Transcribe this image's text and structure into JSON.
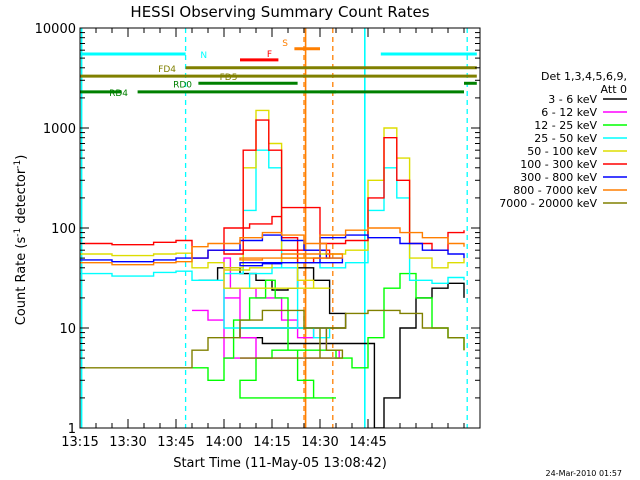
{
  "chart_data": {
    "type": "line",
    "title": "HESSI Observing Summary Count Rates",
    "xlabel": "Start Time (11-May-05 13:08:42)",
    "ylabel_main": "Count Rate (s",
    "ylabel_sup1": "-1",
    "ylabel_mid": " detector",
    "ylabel_sup2": "-1",
    "ylabel_end": ")",
    "yscale": "log",
    "ylim": [
      1,
      10000
    ],
    "xlim_minutes": [
      13.15,
      14.8
    ],
    "x_ticks": [
      "13:15",
      "13:30",
      "13:45",
      "14:00",
      "14:15",
      "14:30",
      "14:45"
    ],
    "y_ticks": [
      "1",
      "10",
      "100",
      "1000",
      "10000"
    ],
    "legend_header": [
      "Det 1,3,4,5,6,9,",
      "Att 0"
    ],
    "series": [
      {
        "name": "3 - 6 keV",
        "color": "#000000",
        "points": [
          [
            13.52,
            30
          ],
          [
            13.58,
            40
          ],
          [
            13.65,
            35
          ],
          [
            13.7,
            30
          ],
          [
            13.75,
            24
          ],
          [
            13.8,
            25
          ],
          [
            13.83,
            40
          ],
          [
            13.88,
            30
          ],
          [
            13.93,
            14
          ],
          [
            13.98,
            10
          ],
          [
            14.05,
            8
          ],
          [
            14.12,
            7
          ],
          [
            14.18,
            7
          ],
          [
            14.47,
            1
          ],
          [
            14.5,
            2
          ],
          [
            14.55,
            10
          ],
          [
            14.6,
            20
          ],
          [
            14.65,
            25
          ],
          [
            14.7,
            28
          ],
          [
            14.75,
            20
          ]
        ]
      },
      {
        "name": "6 - 12 keV",
        "color": "#ff00ff",
        "points": [
          [
            13.5,
            15
          ],
          [
            13.55,
            12
          ],
          [
            13.6,
            20
          ],
          [
            13.65,
            25
          ],
          [
            13.7,
            20
          ],
          [
            13.78,
            12
          ],
          [
            13.83,
            8
          ],
          [
            13.88,
            10
          ],
          [
            13.92,
            6
          ],
          [
            13.96,
            5
          ],
          [
            14.0,
            50
          ],
          [
            14.02,
            25
          ],
          [
            14.05,
            8
          ],
          [
            14.1,
            5
          ],
          [
            14.15,
            5
          ],
          [
            14.18,
            5
          ]
        ]
      },
      {
        "name": "12 - 25 keV",
        "color": "#00ff00",
        "points": [
          [
            13.5,
            4
          ],
          [
            13.55,
            3
          ],
          [
            13.6,
            5
          ],
          [
            13.63,
            12
          ],
          [
            13.68,
            20
          ],
          [
            13.73,
            30
          ],
          [
            13.76,
            20
          ],
          [
            13.8,
            6
          ],
          [
            13.83,
            3
          ],
          [
            13.88,
            2
          ],
          [
            13.95,
            2
          ],
          [
            14.05,
            3
          ],
          [
            14.1,
            5
          ],
          [
            14.15,
            6
          ],
          [
            14.18,
            6
          ],
          [
            14.35,
            5
          ],
          [
            14.4,
            4
          ],
          [
            14.45,
            8
          ],
          [
            14.5,
            25
          ],
          [
            14.55,
            35
          ],
          [
            14.6,
            20
          ],
          [
            14.65,
            10
          ],
          [
            14.7,
            8
          ],
          [
            14.75,
            6
          ]
        ]
      },
      {
        "name": "25 - 50 keV",
        "color": "#00ffff",
        "points": [
          [
            13.15,
            35
          ],
          [
            13.25,
            33
          ],
          [
            13.38,
            36
          ],
          [
            13.45,
            37
          ],
          [
            13.5,
            30
          ],
          [
            13.55,
            30
          ],
          [
            13.6,
            35
          ],
          [
            13.66,
            150
          ],
          [
            13.7,
            600
          ],
          [
            13.74,
            400
          ],
          [
            13.78,
            40
          ],
          [
            13.83,
            10
          ],
          [
            13.88,
            8
          ],
          [
            13.93,
            10
          ],
          [
            14.0,
            25
          ],
          [
            14.08,
            35
          ],
          [
            14.15,
            40
          ],
          [
            14.18,
            45
          ],
          [
            14.3,
            40
          ],
          [
            14.38,
            45
          ],
          [
            14.45,
            150
          ],
          [
            14.5,
            400
          ],
          [
            14.54,
            200
          ],
          [
            14.58,
            30
          ],
          [
            14.65,
            28
          ],
          [
            14.7,
            32
          ],
          [
            14.75,
            30
          ]
        ]
      },
      {
        "name": "50 - 100 keV",
        "color": "#dddd00",
        "points": [
          [
            13.15,
            55
          ],
          [
            13.25,
            53
          ],
          [
            13.38,
            55
          ],
          [
            13.45,
            56
          ],
          [
            13.5,
            40
          ],
          [
            13.55,
            45
          ],
          [
            13.6,
            40
          ],
          [
            13.66,
            400
          ],
          [
            13.7,
            1500
          ],
          [
            13.74,
            700
          ],
          [
            13.78,
            60
          ],
          [
            13.83,
            30
          ],
          [
            13.88,
            25
          ],
          [
            13.93,
            25
          ],
          [
            14.0,
            38
          ],
          [
            14.08,
            40
          ],
          [
            14.15,
            45
          ],
          [
            14.18,
            50
          ],
          [
            14.3,
            55
          ],
          [
            14.38,
            60
          ],
          [
            14.45,
            300
          ],
          [
            14.5,
            1000
          ],
          [
            14.54,
            500
          ],
          [
            14.58,
            50
          ],
          [
            14.65,
            40
          ],
          [
            14.7,
            45
          ],
          [
            14.75,
            50
          ]
        ]
      },
      {
        "name": "100 - 300 keV",
        "color": "#ff0000",
        "points": [
          [
            13.15,
            70
          ],
          [
            13.25,
            68
          ],
          [
            13.38,
            72
          ],
          [
            13.45,
            75
          ],
          [
            13.5,
            50
          ],
          [
            13.55,
            60
          ],
          [
            13.6,
            55
          ],
          [
            13.66,
            600
          ],
          [
            13.7,
            1200
          ],
          [
            13.74,
            600
          ],
          [
            13.78,
            80
          ],
          [
            13.83,
            45
          ],
          [
            13.88,
            50
          ],
          [
            13.93,
            60
          ],
          [
            14.0,
            100
          ],
          [
            14.08,
            110
          ],
          [
            14.15,
            130
          ],
          [
            14.18,
            160
          ],
          [
            14.3,
            70
          ],
          [
            14.38,
            75
          ],
          [
            14.45,
            200
          ],
          [
            14.5,
            800
          ],
          [
            14.54,
            300
          ],
          [
            14.58,
            70
          ],
          [
            14.65,
            60
          ],
          [
            14.7,
            90
          ],
          [
            14.75,
            95
          ]
        ]
      },
      {
        "name": "300 - 800 keV",
        "color": "#0000ff",
        "points": [
          [
            13.15,
            48
          ],
          [
            13.25,
            46
          ],
          [
            13.38,
            48
          ],
          [
            13.45,
            50
          ],
          [
            13.5,
            50
          ],
          [
            13.55,
            60
          ],
          [
            13.65,
            75
          ],
          [
            13.72,
            85
          ],
          [
            13.78,
            75
          ],
          [
            13.85,
            60
          ],
          [
            13.92,
            50
          ],
          [
            13.97,
            45
          ],
          [
            14.05,
            42
          ],
          [
            14.12,
            44
          ],
          [
            14.18,
            45
          ],
          [
            14.3,
            80
          ],
          [
            14.38,
            85
          ],
          [
            14.45,
            80
          ],
          [
            14.55,
            70
          ],
          [
            14.62,
            60
          ],
          [
            14.7,
            55
          ],
          [
            14.75,
            50
          ]
        ]
      },
      {
        "name": "800 - 7000 keV",
        "color": "#ff7f00",
        "points": [
          [
            13.15,
            45
          ],
          [
            13.25,
            43
          ],
          [
            13.38,
            45
          ],
          [
            13.45,
            46
          ],
          [
            13.5,
            65
          ],
          [
            13.55,
            70
          ],
          [
            13.65,
            80
          ],
          [
            13.72,
            90
          ],
          [
            13.78,
            85
          ],
          [
            13.85,
            70
          ],
          [
            13.92,
            55
          ],
          [
            13.97,
            50
          ],
          [
            14.05,
            48
          ],
          [
            14.12,
            50
          ],
          [
            14.18,
            55
          ],
          [
            14.3,
            85
          ],
          [
            14.38,
            95
          ],
          [
            14.45,
            100
          ],
          [
            14.55,
            90
          ],
          [
            14.62,
            80
          ],
          [
            14.7,
            70
          ],
          [
            14.75,
            65
          ]
        ]
      },
      {
        "name": "7000 - 20000 keV",
        "color": "#808000",
        "points": [
          [
            13.15,
            4
          ],
          [
            13.25,
            4
          ],
          [
            13.38,
            4
          ],
          [
            13.45,
            4
          ],
          [
            13.5,
            6
          ],
          [
            13.55,
            8
          ],
          [
            13.65,
            12
          ],
          [
            13.72,
            15
          ],
          [
            13.78,
            15
          ],
          [
            13.85,
            10
          ],
          [
            13.92,
            6
          ],
          [
            13.97,
            5
          ],
          [
            14.05,
            5
          ],
          [
            14.12,
            5
          ],
          [
            14.18,
            5
          ],
          [
            14.3,
            10
          ],
          [
            14.38,
            14
          ],
          [
            14.45,
            15
          ],
          [
            14.55,
            14
          ],
          [
            14.62,
            10
          ],
          [
            14.7,
            8
          ],
          [
            14.75,
            6
          ]
        ]
      }
    ],
    "bars": [
      {
        "label": "N",
        "label_side": "right",
        "label_at": 13.52,
        "color": "#00ffff",
        "level": 5500,
        "segments": [
          [
            13.15,
            13.48
          ],
          [
            14.49,
            14.79
          ]
        ]
      },
      {
        "label": "F",
        "label_side": "left",
        "label_at": 13.75,
        "color": "#ff0000",
        "level": 4800,
        "segments": [
          [
            13.77,
            14.05
          ]
        ]
      },
      {
        "label": "S",
        "label_side": "left",
        "label_at": 14.2,
        "color": "#ff7f00",
        "level": 6200,
        "segments": [
          [
            14.22,
            14.3
          ]
        ]
      },
      {
        "label": "FD4",
        "label_side": "left",
        "label_at": 13.45,
        "color": "#808000",
        "level": 4000,
        "segments": [
          [
            13.48,
            14.79
          ]
        ]
      },
      {
        "label": "FD5",
        "label_side": "right",
        "label_at": 13.58,
        "color": "#808000",
        "level": 3300,
        "segments": [
          [
            13.15,
            14.79
          ]
        ]
      },
      {
        "label": "RD0",
        "label_side": "left",
        "label_at": 13.5,
        "color": "#008000",
        "level": 2800,
        "segments": [
          [
            13.52,
            14.23
          ],
          [
            14.75,
            14.79
          ]
        ]
      },
      {
        "label": "RD4",
        "label_side": "left",
        "label_at": 13.3,
        "color": "#008000",
        "level": 2300,
        "segments": [
          [
            13.15,
            13.28
          ],
          [
            13.33,
            13.95
          ],
          [
            14.3,
            14.75
          ]
        ]
      }
    ],
    "vlines": [
      {
        "name": "saa-start",
        "x": 13.48,
        "color": "#00ffff",
        "dashed": true
      },
      {
        "name": "saa-end",
        "x": 14.76,
        "color": "#00ffff",
        "dashed": true
      },
      {
        "name": "data-gap",
        "x": 14.25,
        "color": "#ff7f00",
        "dashed": true
      },
      {
        "name": "attenuator-in",
        "x": 14.34,
        "color": "#ff7f00",
        "dashed": true
      },
      {
        "name": "cyan-start",
        "x": 13.155,
        "color": "#00ffff",
        "dashed": false
      },
      {
        "name": "cyan-mid",
        "x": 14.44,
        "color": "#00ffff",
        "dashed": false
      },
      {
        "name": "orange-solid",
        "x": 14.255,
        "color": "#ff7f00",
        "dashed": false
      }
    ]
  },
  "footer_timestamp": "24-Mar-2010 01:57"
}
